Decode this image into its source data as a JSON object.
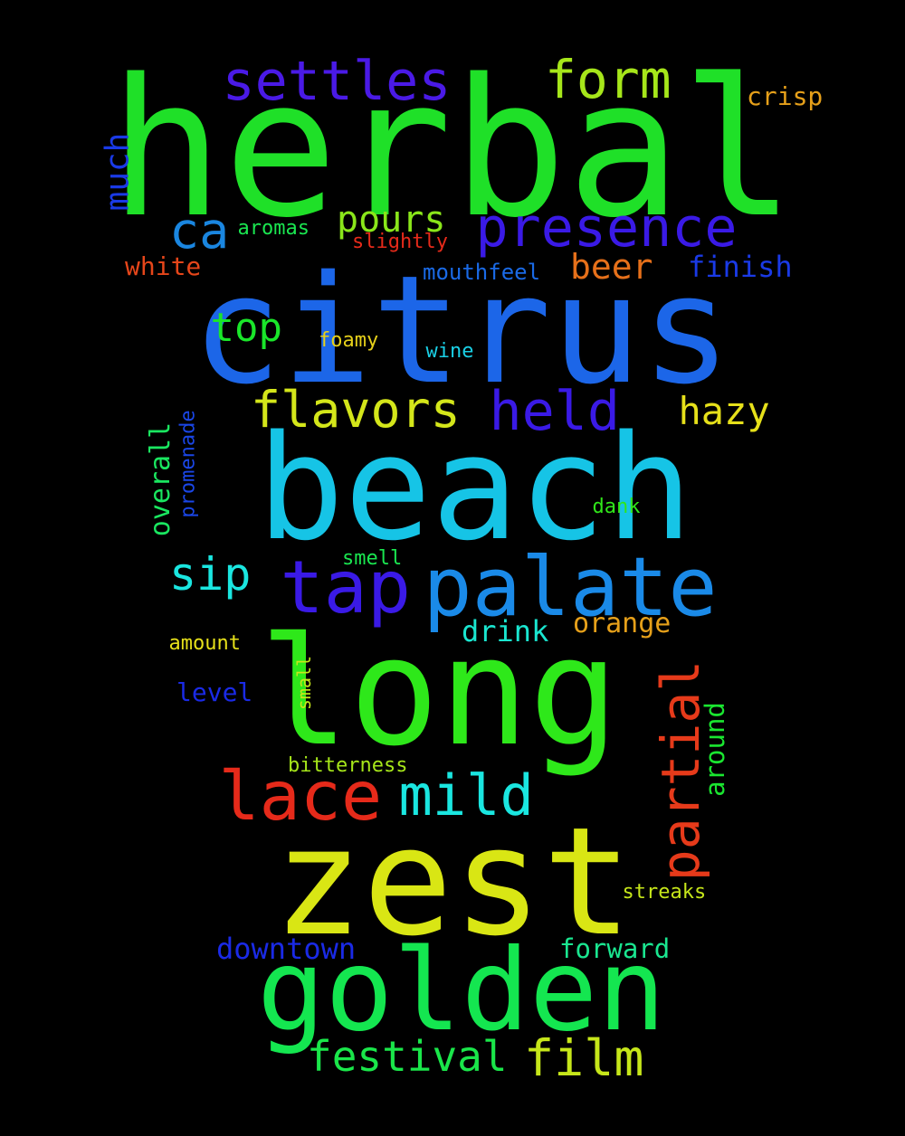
{
  "words": [
    {
      "id": "herbal",
      "text": "herbal",
      "color": "#1fe028"
    },
    {
      "id": "citrus",
      "text": "citrus",
      "color": "#1c66e8"
    },
    {
      "id": "beach",
      "text": "beach",
      "color": "#16c4e6"
    },
    {
      "id": "long",
      "text": "long",
      "color": "#2ee81a"
    },
    {
      "id": "zest",
      "text": "zest",
      "color": "#d9e614"
    },
    {
      "id": "golden",
      "text": "golden",
      "color": "#14e650"
    },
    {
      "id": "palate",
      "text": "palate",
      "color": "#1a8ae8"
    },
    {
      "id": "tap",
      "text": "tap",
      "color": "#3a1ae6"
    },
    {
      "id": "presence",
      "text": "presence",
      "color": "#3a1ae6"
    },
    {
      "id": "settles",
      "text": "settles",
      "color": "#4a1ae6"
    },
    {
      "id": "form",
      "text": "form",
      "color": "#a6e61a"
    },
    {
      "id": "lace",
      "text": "lace",
      "color": "#e62a1a"
    },
    {
      "id": "mild",
      "text": "mild",
      "color": "#1ae6e0"
    },
    {
      "id": "partial",
      "text": "partial",
      "color": "#e63a1a"
    },
    {
      "id": "flavors",
      "text": "flavors",
      "color": "#d4e61a"
    },
    {
      "id": "held",
      "text": "held",
      "color": "#3a1ae6"
    },
    {
      "id": "film",
      "text": "film",
      "color": "#c6e61a"
    },
    {
      "id": "festival",
      "text": "festival",
      "color": "#1ae64a"
    },
    {
      "id": "ca",
      "text": "ca",
      "color": "#1a86e0"
    },
    {
      "id": "pours",
      "text": "pours",
      "color": "#8ae61a"
    },
    {
      "id": "sip",
      "text": "sip",
      "color": "#1ae6e0"
    },
    {
      "id": "top",
      "text": "top",
      "color": "#1ae62a"
    },
    {
      "id": "beer",
      "text": "beer",
      "color": "#e6701a"
    },
    {
      "id": "hazy",
      "text": "hazy",
      "color": "#e6e01a"
    },
    {
      "id": "much",
      "text": "much",
      "color": "#1a3ae6"
    },
    {
      "id": "overall",
      "text": "overall",
      "color": "#1ae660"
    },
    {
      "id": "finish",
      "text": "finish",
      "color": "#1a3ae6"
    },
    {
      "id": "white",
      "text": "white",
      "color": "#e6461a"
    },
    {
      "id": "crisp",
      "text": "crisp",
      "color": "#e6a01a"
    },
    {
      "id": "drink",
      "text": "drink",
      "color": "#1ae6d0"
    },
    {
      "id": "orange",
      "text": "orange",
      "color": "#e6a01a"
    },
    {
      "id": "downtown",
      "text": "downtown",
      "color": "#1a2ae6"
    },
    {
      "id": "forward",
      "text": "forward",
      "color": "#1ae690"
    },
    {
      "id": "around",
      "text": "around",
      "color": "#1ae630"
    },
    {
      "id": "level",
      "text": "level",
      "color": "#1a2ae6"
    },
    {
      "id": "promenade",
      "text": "promenade",
      "color": "#1a46e6"
    },
    {
      "id": "mouthfeel",
      "text": "mouthfeel",
      "color": "#1a6ae6"
    },
    {
      "id": "aromas",
      "text": "aromas",
      "color": "#1ae650"
    },
    {
      "id": "slightly",
      "text": "slightly",
      "color": "#e62a1a"
    },
    {
      "id": "foamy",
      "text": "foamy",
      "color": "#e6d01a"
    },
    {
      "id": "wine",
      "text": "wine",
      "color": "#1ad0e6"
    },
    {
      "id": "dank",
      "text": "dank",
      "color": "#30e61a"
    },
    {
      "id": "smell",
      "text": "smell",
      "color": "#1ae650"
    },
    {
      "id": "amount",
      "text": "amount",
      "color": "#e6e01a"
    },
    {
      "id": "small",
      "text": "small",
      "color": "#c6e61a"
    },
    {
      "id": "bitterness",
      "text": "bitterness",
      "color": "#a6e61a"
    },
    {
      "id": "streaks",
      "text": "streaks",
      "color": "#c6e61a"
    }
  ]
}
